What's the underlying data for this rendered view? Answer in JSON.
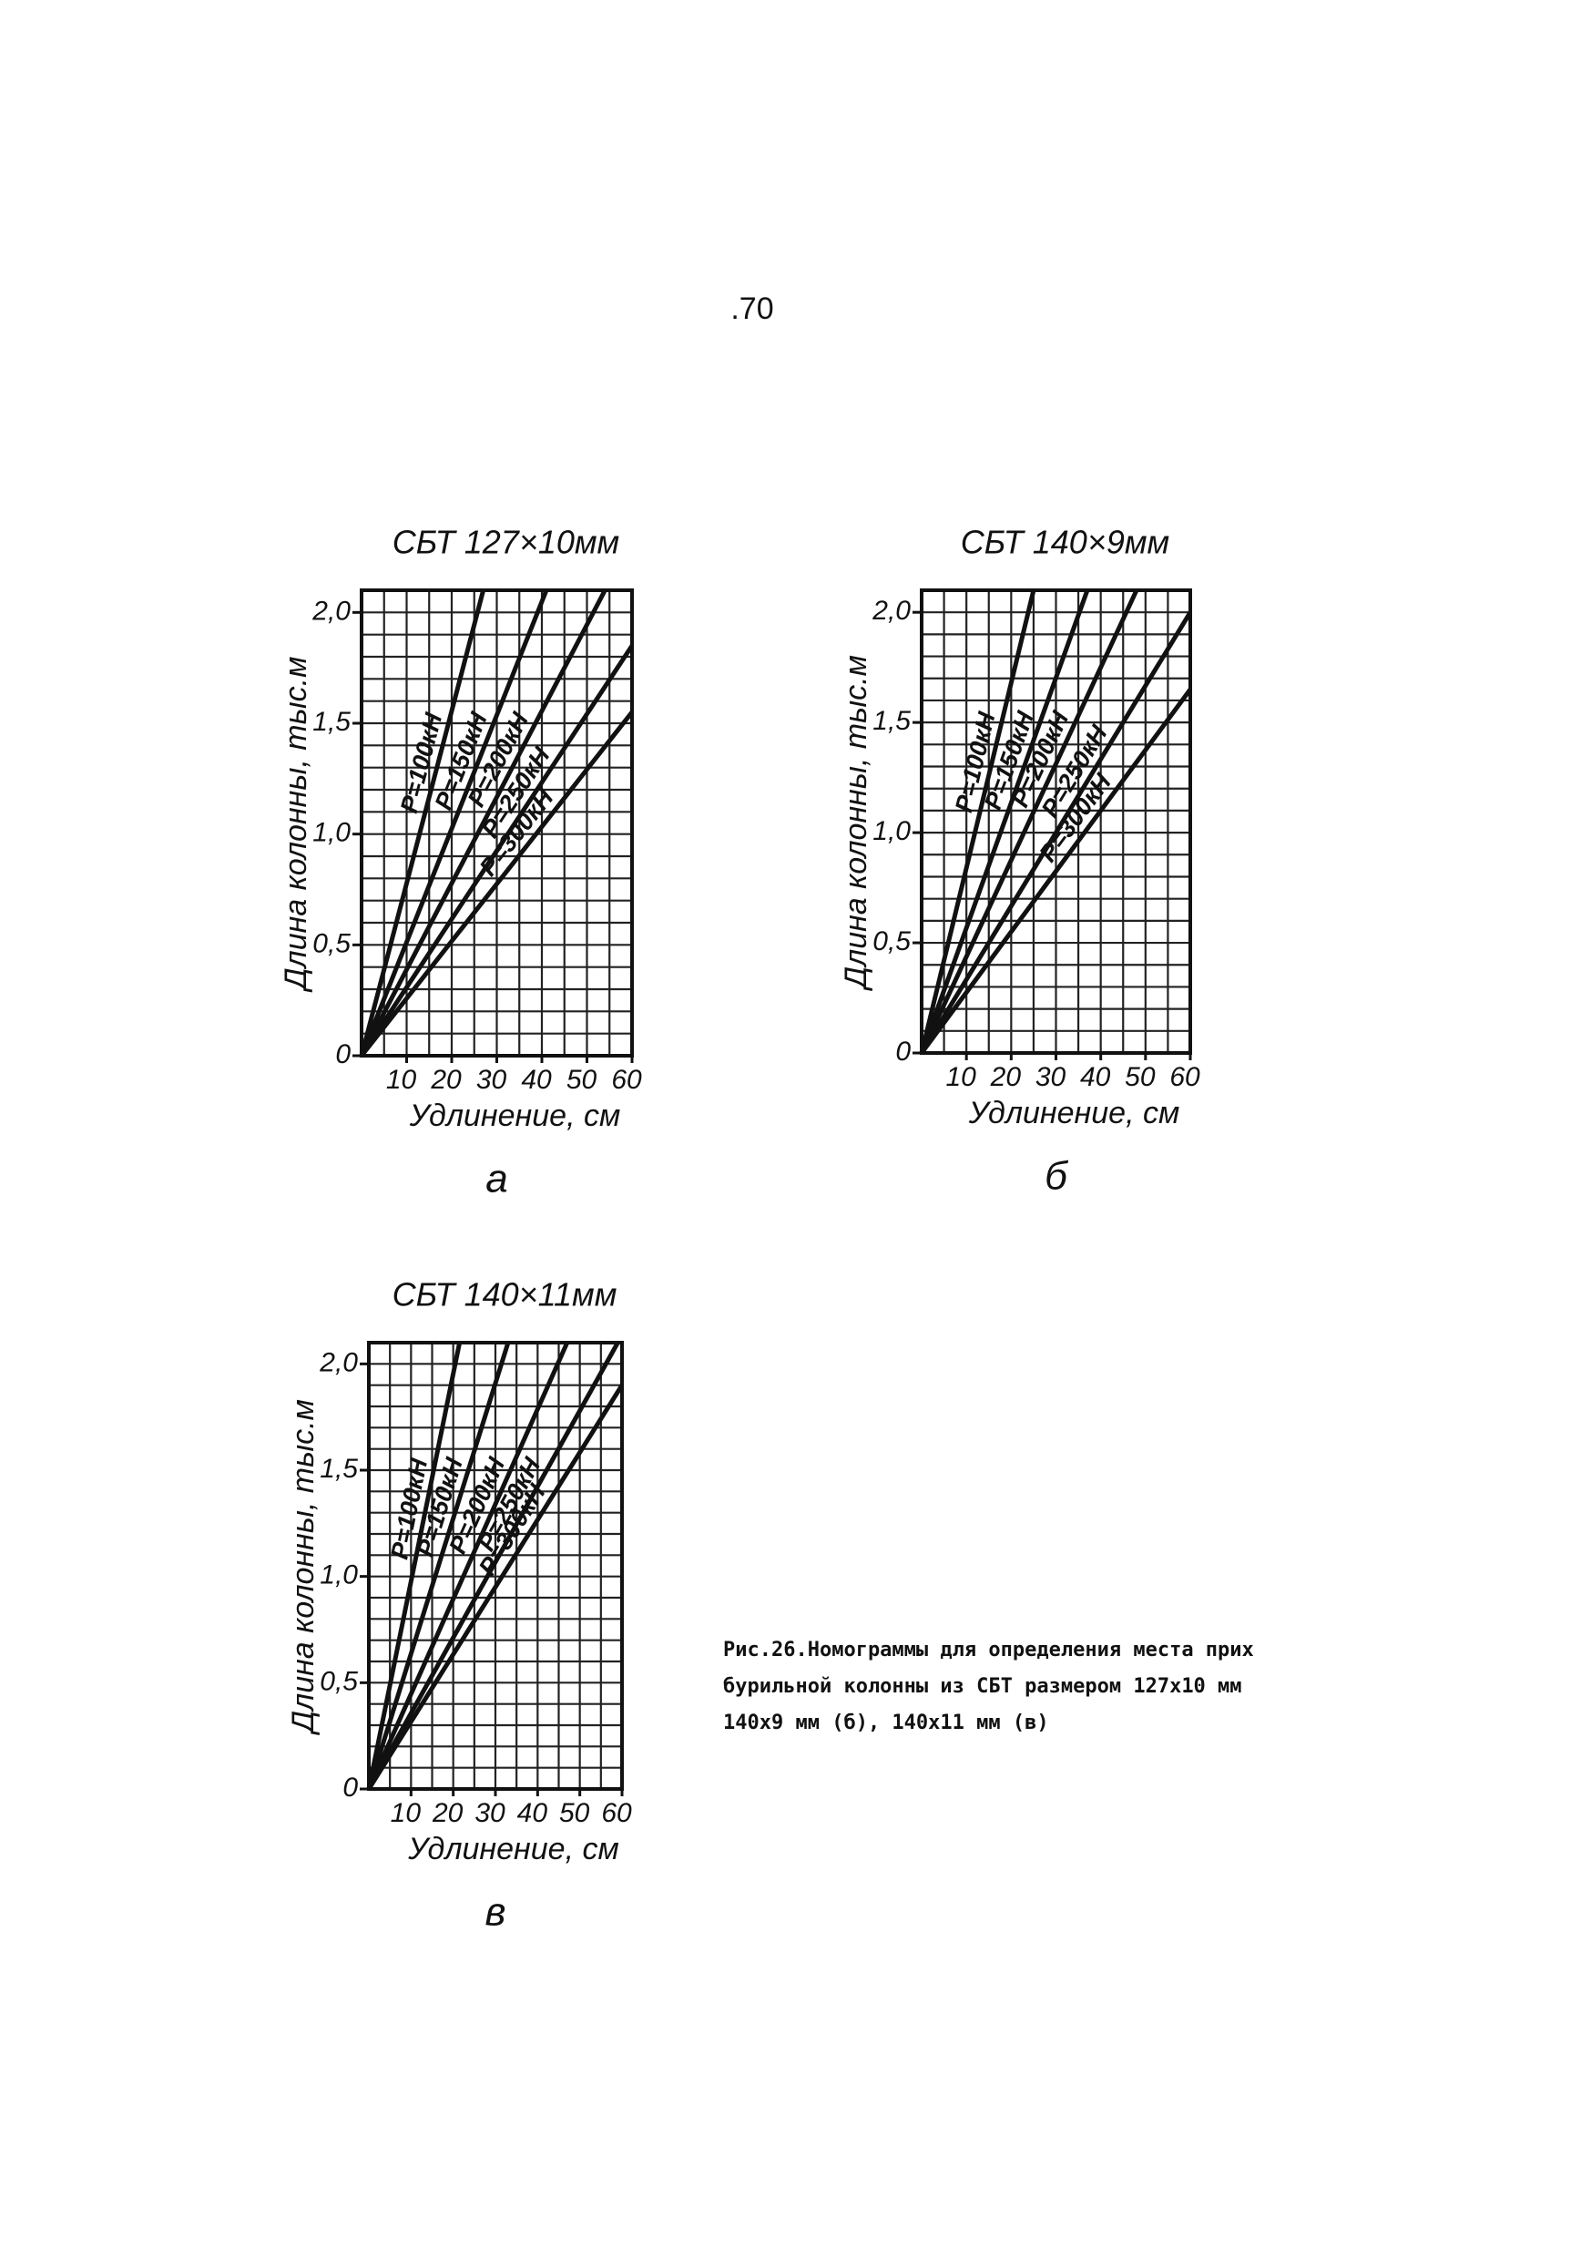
{
  "page_number": ".70",
  "caption": [
    "Рис.26.Номограммы для определения места прих",
    "бурильной колонны из СБТ размером 127х10 мм",
    "140х9 мм (б), 140х11 мм (в)"
  ],
  "chart_data": [
    {
      "type": "line",
      "title": "СБТ 127×10мм",
      "xlabel": "Удлинение, см",
      "ylabel": "Длина колонны, тыс.м",
      "panel": "а",
      "xlim": [
        0,
        60
      ],
      "ylim": [
        0,
        2.1
      ],
      "xticks": [
        10,
        20,
        30,
        40,
        50,
        60
      ],
      "yticks": [
        0,
        {
          "value": 0.5,
          "label": "0,5"
        },
        {
          "value": 1.0,
          "label": "1,0"
        },
        {
          "value": 1.5,
          "label": "1,5"
        },
        {
          "value": 2.0,
          "label": "2,0"
        }
      ],
      "x_grid_step": 5,
      "y_grid_step": 0.1,
      "color": "#111111",
      "series": [
        {
          "name": "Р=100кН",
          "x": [
            0,
            27
          ],
          "values": [
            0,
            2.1
          ]
        },
        {
          "name": "Р=150кН",
          "x": [
            0,
            41
          ],
          "values": [
            0,
            2.1
          ]
        },
        {
          "name": "Р=200кН",
          "x": [
            0,
            54
          ],
          "values": [
            0,
            2.1
          ]
        },
        {
          "name": "Р=250кН",
          "x": [
            0,
            60
          ],
          "values": [
            0,
            1.85
          ]
        },
        {
          "name": "Р=300кН",
          "x": [
            0,
            60
          ],
          "values": [
            0,
            1.55
          ]
        }
      ]
    },
    {
      "type": "line",
      "title": "СБТ 140×9мм",
      "xlabel": "Удлинение, см",
      "ylabel": "Длина колонны, тыс.м",
      "panel": "б",
      "xlim": [
        0,
        60
      ],
      "ylim": [
        0,
        2.1
      ],
      "xticks": [
        10,
        20,
        30,
        40,
        50,
        60
      ],
      "yticks": [
        0,
        {
          "value": 0.5,
          "label": "0,5"
        },
        {
          "value": 1.0,
          "label": "1,0"
        },
        {
          "value": 1.5,
          "label": "1,5"
        },
        {
          "value": 2.0,
          "label": "2,0"
        }
      ],
      "x_grid_step": 5,
      "y_grid_step": 0.1,
      "color": "#111111",
      "series": [
        {
          "name": "Р=100кН",
          "x": [
            0,
            25
          ],
          "values": [
            0,
            2.1
          ]
        },
        {
          "name": "Р=150кН",
          "x": [
            0,
            37
          ],
          "values": [
            0,
            2.1
          ]
        },
        {
          "name": "Р=200кН",
          "x": [
            0,
            48
          ],
          "values": [
            0,
            2.1
          ]
        },
        {
          "name": "Р=250кН",
          "x": [
            0,
            60
          ],
          "values": [
            0,
            2.0
          ]
        },
        {
          "name": "Р=300кН",
          "x": [
            0,
            60
          ],
          "values": [
            0,
            1.65
          ]
        }
      ]
    },
    {
      "type": "line",
      "title": "СБТ 140×11мм",
      "xlabel": "Удлинение, см",
      "ylabel": "Длина колонны, тыс.м",
      "panel": "в",
      "xlim": [
        0,
        60
      ],
      "ylim": [
        0,
        2.1
      ],
      "xticks": [
        10,
        20,
        30,
        40,
        50,
        60
      ],
      "yticks": [
        0,
        {
          "value": 0.5,
          "label": "0,5"
        },
        {
          "value": 1.0,
          "label": "1,0"
        },
        {
          "value": 1.5,
          "label": "1,5"
        },
        {
          "value": 2.0,
          "label": "2,0"
        }
      ],
      "x_grid_step": 5,
      "y_grid_step": 0.1,
      "color": "#111111",
      "series": [
        {
          "name": "Р=100кН",
          "x": [
            0,
            21.5
          ],
          "values": [
            0,
            2.1
          ]
        },
        {
          "name": "Р=150кН",
          "x": [
            0,
            33
          ],
          "values": [
            0,
            2.1
          ]
        },
        {
          "name": "Р=200кН",
          "x": [
            0,
            47
          ],
          "values": [
            0,
            2.1
          ]
        },
        {
          "name": "Р=250кН",
          "x": [
            0,
            59
          ],
          "values": [
            0,
            2.1
          ]
        },
        {
          "name": "Р=300кН",
          "x": [
            0,
            60
          ],
          "values": [
            0,
            1.9
          ]
        }
      ]
    }
  ]
}
